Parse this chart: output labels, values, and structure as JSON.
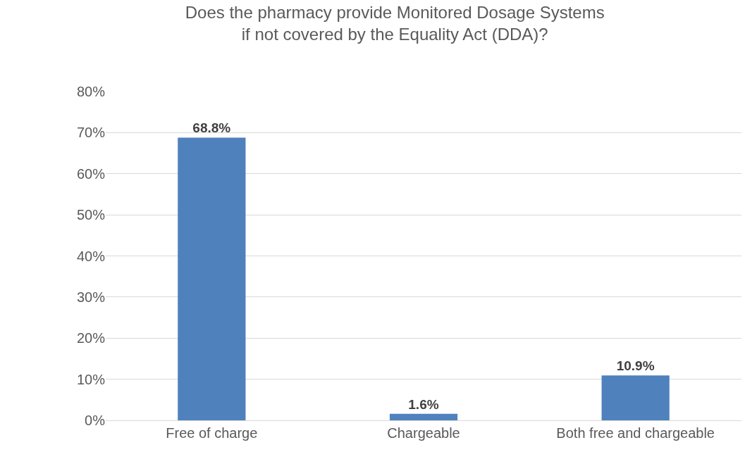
{
  "chart_data": {
    "type": "bar",
    "title": "Does the pharmacy provide Monitored Dosage Systems\nif not covered by the Equality Act (DDA)?",
    "categories": [
      "Free of charge",
      "Chargeable",
      "Both free and chargeable"
    ],
    "values": [
      68.8,
      1.6,
      10.9
    ],
    "color": "#4f81bd",
    "value_labels": [
      "68.8%",
      "1.6%",
      "10.9%"
    ],
    "ylim": [
      0,
      80
    ],
    "yticks": [
      {
        "value": 0,
        "label": "0%"
      },
      {
        "value": 10,
        "label": "10%"
      },
      {
        "value": 20,
        "label": "20%"
      },
      {
        "value": 30,
        "label": "30%"
      },
      {
        "value": 40,
        "label": "40%"
      },
      {
        "value": 50,
        "label": "50%"
      },
      {
        "value": 60,
        "label": "60%"
      },
      {
        "value": 70,
        "label": "70%"
      },
      {
        "value": 80,
        "label": "80%"
      }
    ],
    "grid": "y",
    "legend": false
  }
}
